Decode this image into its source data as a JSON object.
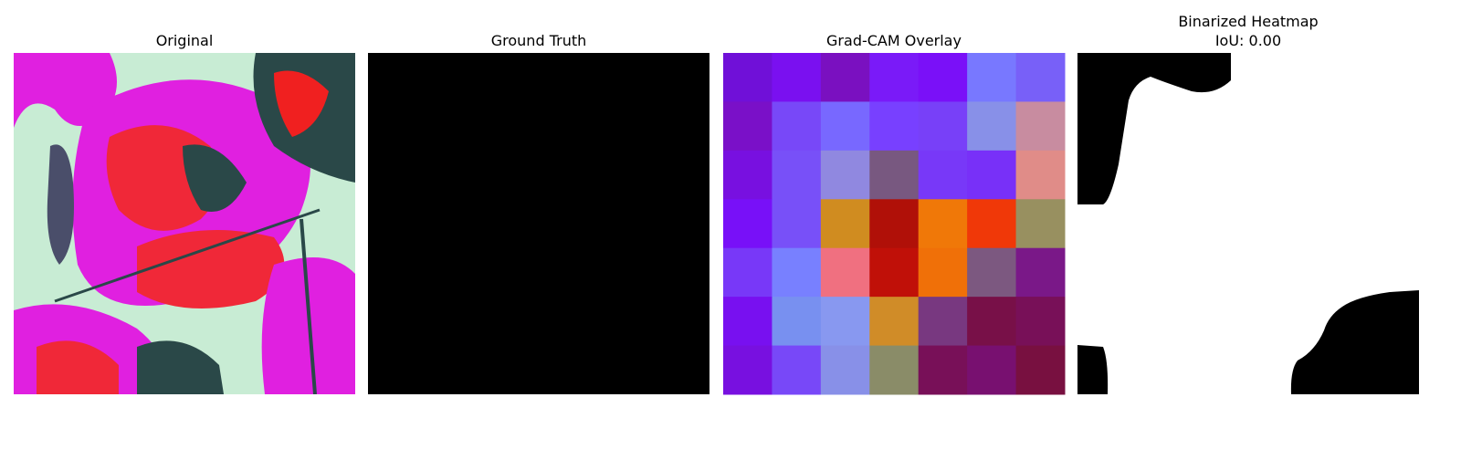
{
  "panels": [
    {
      "title": "Original"
    },
    {
      "title": "Ground Truth"
    },
    {
      "title": "Grad-CAM Overlay",
      "cells": [
        [
          "#7010d8",
          "#7a10f0",
          "#7a10c0",
          "#7a1af8",
          "#7a10f8",
          "#7878ff",
          "#7860f8"
        ],
        [
          "#7a10c8",
          "#7848f8",
          "#7868ff",
          "#7840ff",
          "#7840f8",
          "#8890e8",
          "#c88ca0"
        ],
        [
          "#7810e0",
          "#7850f8",
          "#9088e0",
          "#785880",
          "#7838f8",
          "#7830f8",
          "#e08c88"
        ],
        [
          "#7810f8",
          "#7850f8",
          "#d08c20",
          "#b01008",
          "#f07808",
          "#f03808",
          "#989060"
        ],
        [
          "#7838f8",
          "#7880ff",
          "#f07080",
          "#c01008",
          "#f07008",
          "#7c5880",
          "#7a1888"
        ],
        [
          "#7810f0",
          "#7890f0",
          "#8898f0",
          "#d08c28",
          "#783880",
          "#781048",
          "#781058"
        ],
        [
          "#7810e0",
          "#7848f8",
          "#8890e8",
          "#8a8c68",
          "#781058",
          "#781070",
          "#781040"
        ]
      ]
    },
    {
      "title": "Binarized Heatmap",
      "subtitle": "IoU: 0.00"
    }
  ]
}
